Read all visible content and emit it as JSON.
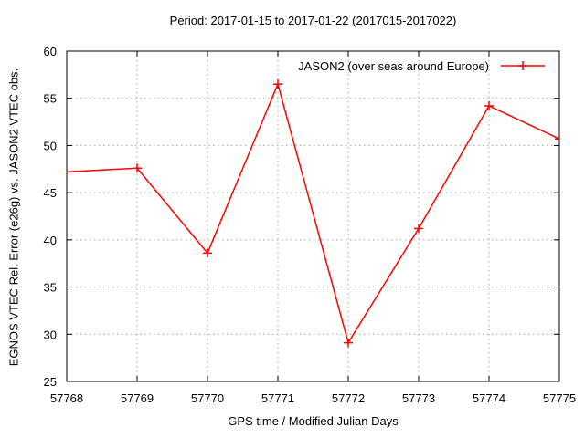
{
  "title": "Period: 2017-01-15 to 2017-01-22 (2017015-2017022)",
  "axes": {
    "x_label": "GPS time / Modified Julian Days",
    "y_label": "EGNOS VTEC Rel. Error (e26g) vs. JASON2 VTEC obs.",
    "x_ticks": [
      "57768",
      "57769",
      "57770",
      "57771",
      "57772",
      "57773",
      "57774",
      "57775"
    ],
    "y_ticks": [
      "25",
      "30",
      "35",
      "40",
      "45",
      "50",
      "55",
      "60"
    ]
  },
  "legend": {
    "label": "JASON2 (over seas around Europe)",
    "marker": "plus",
    "position": "top-right-inside"
  },
  "chart_data": {
    "type": "line",
    "title": "Period: 2017-01-15 to 2017-01-22 (2017015-2017022)",
    "xlabel": "GPS time / Modified Julian Days",
    "ylabel": "EGNOS VTEC Rel. Error (e26g) vs. JASON2 VTEC obs.",
    "x": [
      57768,
      57769,
      57770,
      57771,
      57772,
      57773,
      57774,
      57775
    ],
    "series": [
      {
        "name": "JASON2 (over seas around Europe)",
        "values": [
          47.2,
          47.6,
          38.6,
          56.5,
          29.1,
          41.2,
          54.2,
          50.7
        ],
        "color": "#ff0000",
        "marker": "plus"
      }
    ],
    "xlim": [
      57768,
      57775
    ],
    "ylim": [
      25,
      60
    ],
    "x_tick_step": 1,
    "y_tick_step": 5,
    "grid": true,
    "grid_style": "dotted",
    "legend_position": "top-right-inside"
  },
  "colors": {
    "line": "#ff0000",
    "grid": "#a6a6a6",
    "axis": "#000000",
    "text": "#000000",
    "background": "#ffffff"
  }
}
